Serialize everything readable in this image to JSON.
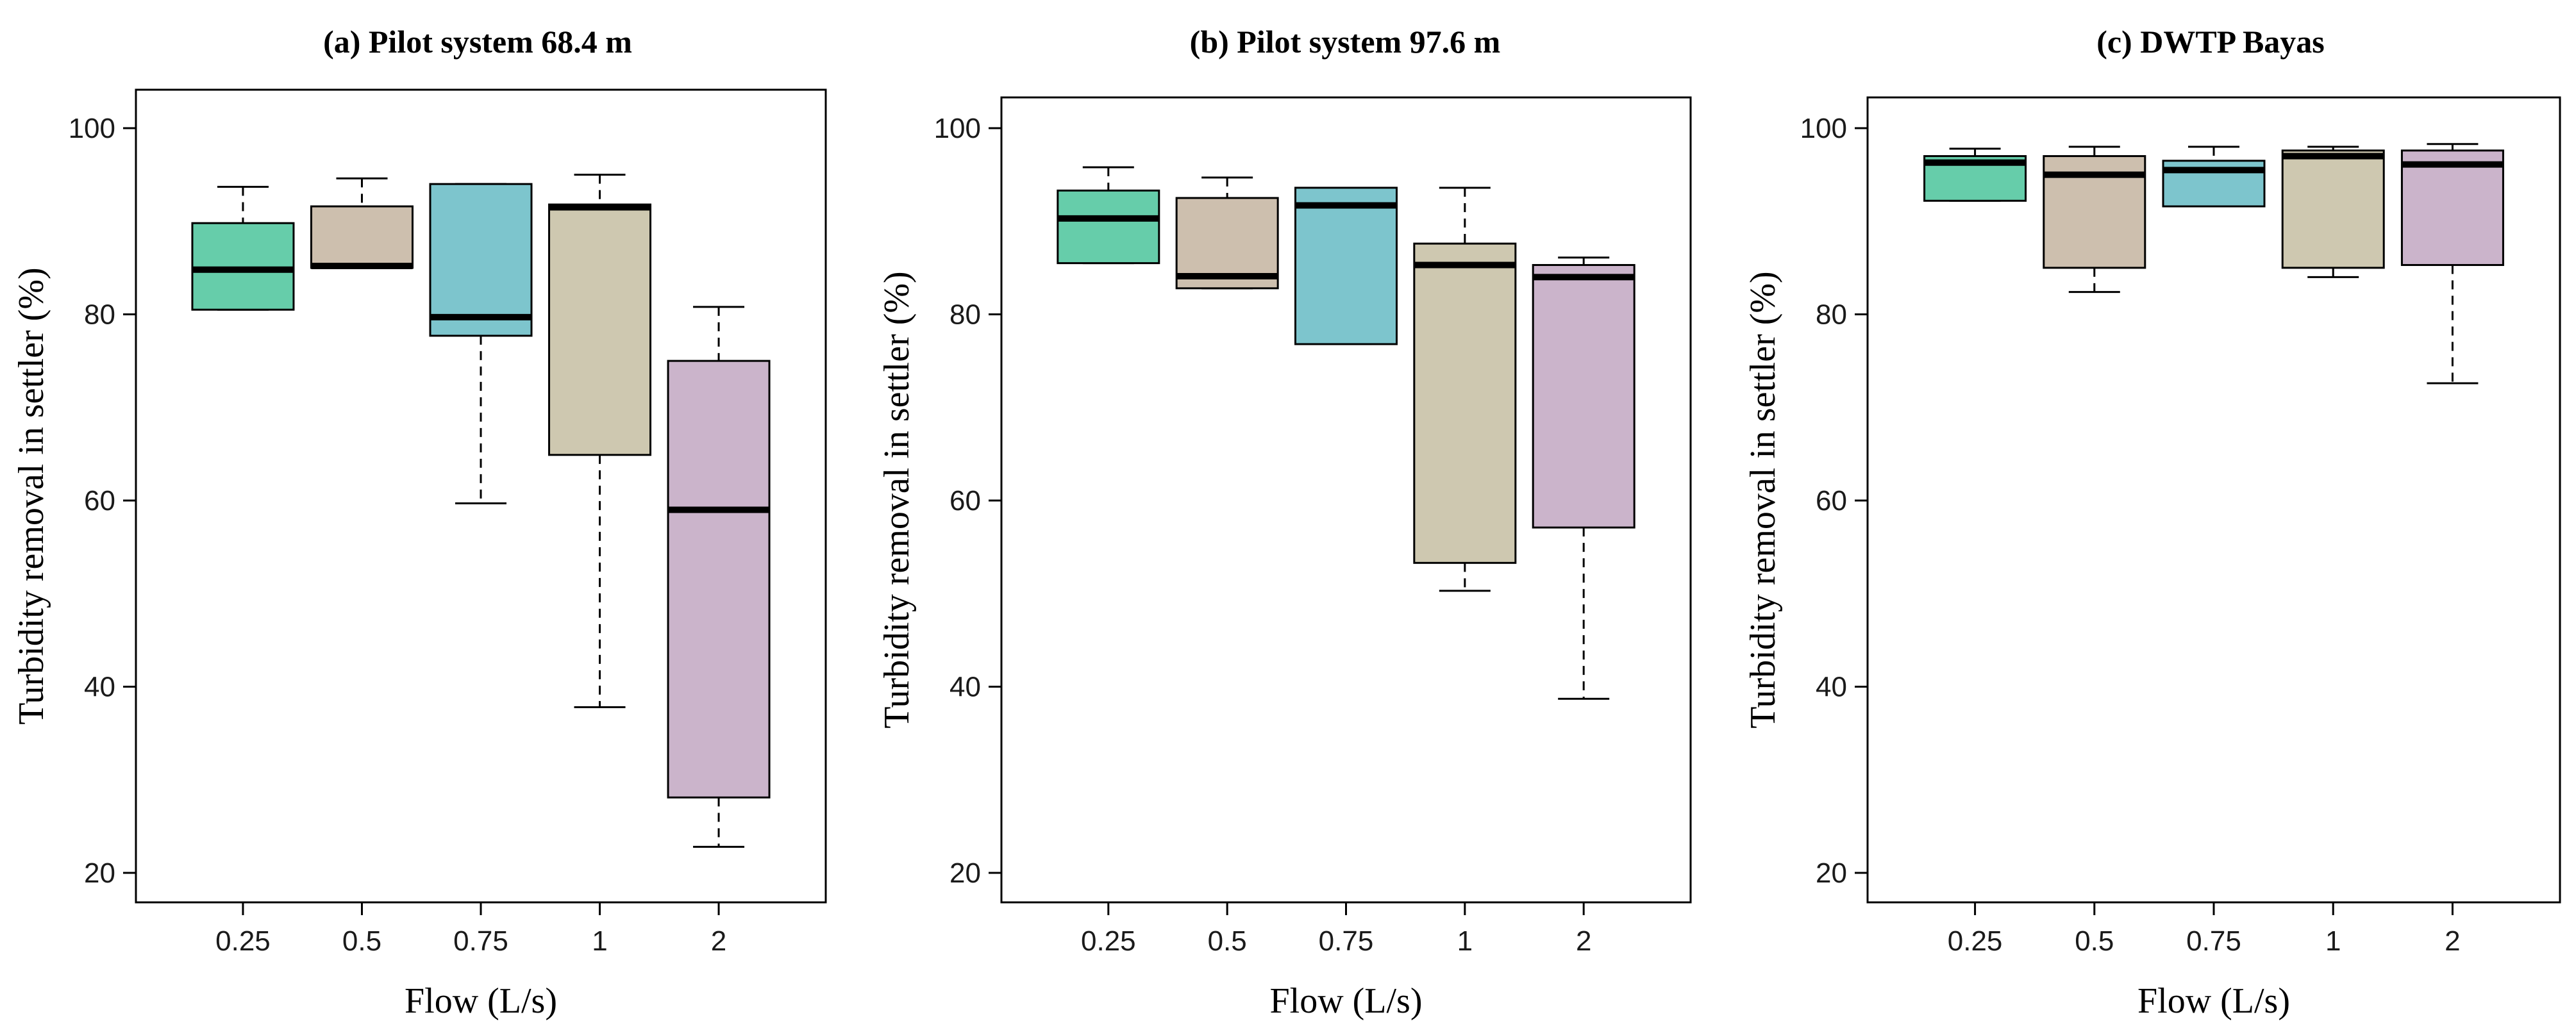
{
  "chart_data": [
    {
      "type": "box",
      "title": "(a) Pilot system 68.4 m",
      "xlabel": "Flow (L/s)",
      "ylabel": "Turbidity removal in settler (%)",
      "ylim": [
        16,
        102
      ],
      "yticks": [
        20,
        40,
        60,
        80,
        100
      ],
      "categories": [
        "0.25",
        "0.5",
        "0.75",
        "1",
        "2"
      ],
      "colors": [
        "#66cdaa",
        "#cdbfae",
        "#7dc5cd",
        "#cec8b0",
        "#cbb4cb"
      ],
      "boxes": [
        {
          "min": 80.5,
          "q1": 80.5,
          "median": 84.8,
          "q3": 89.8,
          "max": 93.7
        },
        {
          "min": 85.0,
          "q1": 85.0,
          "median": 85.2,
          "q3": 91.6,
          "max": 94.6
        },
        {
          "min": 59.7,
          "q1": 77.7,
          "median": 79.7,
          "q3": 94.0,
          "max": 94.0
        },
        {
          "min": 37.8,
          "q1": 64.9,
          "median": 91.5,
          "q3": 91.8,
          "max": 95.0
        },
        {
          "min": 22.8,
          "q1": 28.1,
          "median": 59.0,
          "q3": 75.0,
          "max": 80.8
        }
      ]
    },
    {
      "type": "box",
      "title": "(b) Pilot system 97.6 m",
      "xlabel": "Flow (L/s)",
      "ylabel": "Turbidity removal in settler (%)",
      "ylim": [
        16,
        102
      ],
      "yticks": [
        20,
        40,
        60,
        80,
        100
      ],
      "categories": [
        "0.25",
        "0.5",
        "0.75",
        "1",
        "2"
      ],
      "colors": [
        "#66cdaa",
        "#cdbfae",
        "#7dc5cd",
        "#cec8b0",
        "#cbb4cb"
      ],
      "boxes": [
        {
          "min": 85.5,
          "q1": 85.5,
          "median": 90.3,
          "q3": 93.3,
          "max": 95.8
        },
        {
          "min": 82.8,
          "q1": 82.8,
          "median": 84.1,
          "q3": 92.5,
          "max": 94.7
        },
        {
          "min": 76.8,
          "q1": 76.8,
          "median": 91.7,
          "q3": 93.6,
          "max": 93.6
        },
        {
          "min": 50.3,
          "q1": 53.3,
          "median": 85.3,
          "q3": 87.6,
          "max": 93.6
        },
        {
          "min": 38.7,
          "q1": 57.1,
          "median": 84.0,
          "q3": 85.3,
          "max": 86.1
        }
      ]
    },
    {
      "type": "box",
      "title": "(c) DWTP Bayas",
      "xlabel": "Flow (L/s)",
      "ylabel": "Turbidity removal in settler (%)",
      "ylim": [
        16,
        102
      ],
      "yticks": [
        20,
        40,
        60,
        80,
        100
      ],
      "categories": [
        "0.25",
        "0.5",
        "0.75",
        "1",
        "2"
      ],
      "colors": [
        "#66cdaa",
        "#cdbfae",
        "#7dc5cd",
        "#cec8b0",
        "#cbb4cb"
      ],
      "boxes": [
        {
          "min": 92.2,
          "q1": 92.2,
          "median": 96.3,
          "q3": 97.0,
          "max": 97.8
        },
        {
          "min": 82.4,
          "q1": 85.0,
          "median": 95.0,
          "q3": 97.0,
          "max": 98.0
        },
        {
          "min": 91.6,
          "q1": 91.6,
          "median": 95.5,
          "q3": 96.5,
          "max": 98.0
        },
        {
          "min": 84.0,
          "q1": 85.0,
          "median": 97.0,
          "q3": 97.6,
          "max": 98.0
        },
        {
          "min": 72.6,
          "q1": 85.3,
          "median": 96.1,
          "q3": 97.6,
          "max": 98.3
        }
      ]
    }
  ]
}
